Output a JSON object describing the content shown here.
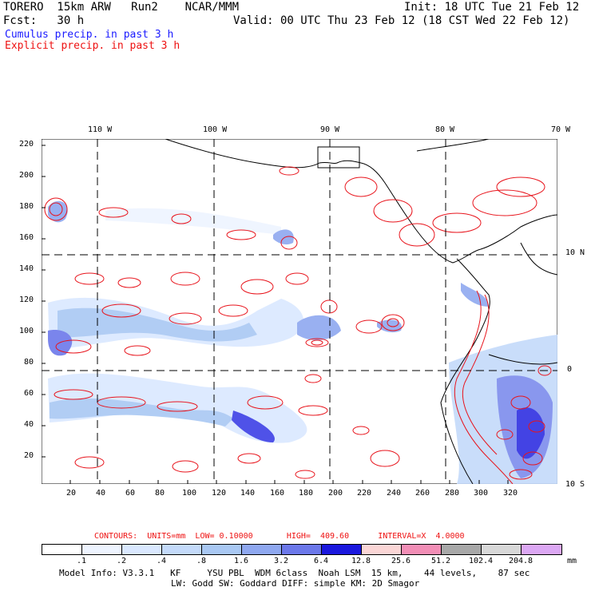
{
  "header": {
    "model": "TORERO  15km ARW   Run2    NCAR/MMM",
    "init": "Init: 18 UTC Tue 21 Feb 12",
    "fcst": "Fcst:   30 h",
    "valid": "Valid: 00 UTC Thu 23 Feb 12 (18 CST Wed 22 Feb 12)",
    "legend_cumulus": "Cumulus precip. in past 3 h",
    "legend_explicit": "Explicit precip. in past 3 h"
  },
  "colors": {
    "blue_text": "#1a1aff",
    "red_text": "#ee1111",
    "contour": "#e8141c",
    "land": "#000000"
  },
  "map": {
    "top_lon_labels": [
      "110 W",
      "100 W",
      "90 W",
      "80 W",
      "70 W"
    ],
    "left_ticks": [
      "220",
      "200",
      "180",
      "160",
      "140",
      "120",
      "100",
      "80",
      "60",
      "40",
      "20"
    ],
    "bottom_ticks": [
      "20",
      "40",
      "60",
      "80",
      "100",
      "120",
      "140",
      "160",
      "180",
      "200",
      "220",
      "240",
      "260",
      "280",
      "300",
      "320"
    ],
    "right_lat_labels": [
      "10 N",
      "0",
      "10 S"
    ]
  },
  "footer": {
    "contours_line": "CONTOURS:  UNITS=mm  LOW= 0.10000       HIGH=  409.60      INTERVAL=X  4.0000",
    "colorbar": {
      "labels": [
        ".1",
        ".2",
        ".4",
        ".8",
        "1.6",
        "3.2",
        "6.4",
        "12.8",
        "25.6",
        "51.2",
        "102.4",
        "204.8"
      ],
      "units": "mm",
      "colors": [
        "#ffffff",
        "#eef4ff",
        "#dae8ff",
        "#c4dafa",
        "#a9c8f3",
        "#8fa8f0",
        "#6c78ea",
        "#3c40e6",
        "#1b18de",
        "#fbd6d6",
        "#f28eb6",
        "#a8a8a8",
        "#d8d8d8",
        "#dca8f4"
      ]
    },
    "model_info_1": "Model Info: V3.3.1   KF     YSU PBL  WDM 6class  Noah LSM  15 km,    44 levels,    87 sec",
    "model_info_2": "LW: Godd SW: Goddard DIFF: simple KM: 2D Smagor"
  }
}
